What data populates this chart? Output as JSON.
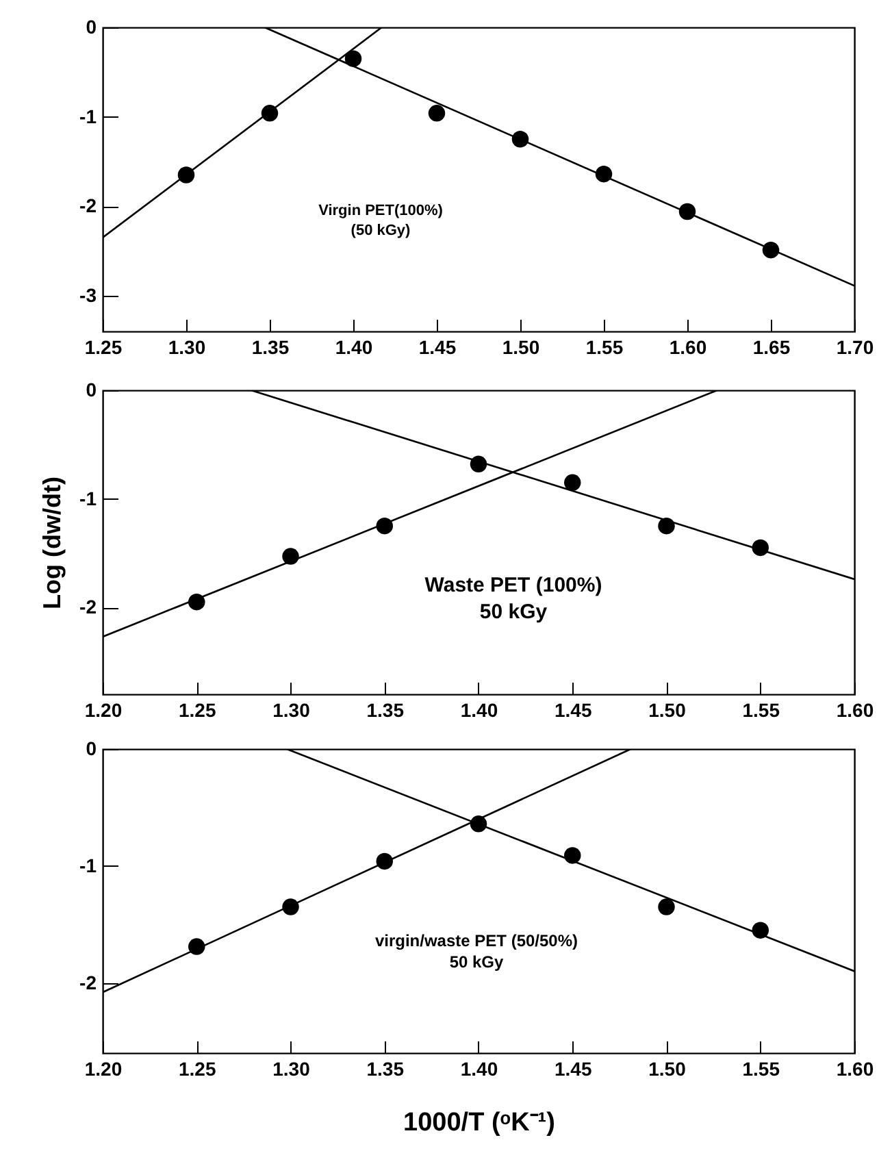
{
  "chart_data": [
    {
      "type": "scatter",
      "grid": false,
      "xlim": [
        1.25,
        1.7
      ],
      "xticks": [
        {
          "value": 1.25,
          "label": "1.25"
        },
        {
          "value": 1.3,
          "label": "1.30"
        },
        {
          "value": 1.35,
          "label": "1.35"
        },
        {
          "value": 1.4,
          "label": "1.40"
        },
        {
          "value": 1.45,
          "label": "1.45"
        },
        {
          "value": 1.5,
          "label": "1.50"
        },
        {
          "value": 1.55,
          "label": "1.55"
        },
        {
          "value": 1.6,
          "label": "1.60"
        },
        {
          "value": 1.65,
          "label": "1.65"
        },
        {
          "value": 1.7,
          "label": "1.70"
        }
      ],
      "ylim": [
        -3.4,
        0
      ],
      "yticks": [
        0,
        -1,
        -2,
        -3
      ],
      "annotations": [
        "Virgin PET(100%)",
        "(50 kGy)"
      ],
      "series": [
        {
          "marker": "circle",
          "color": "#000000",
          "x": [
            1.3,
            1.35,
            1.4,
            1.45,
            1.5,
            1.55,
            1.6,
            1.65
          ],
          "values": [
            -1.65,
            -0.96,
            -0.35,
            -0.96,
            -1.25,
            -1.64,
            -2.06,
            -2.49
          ]
        },
        {
          "type": "line",
          "color": "#000000",
          "x": [
            1.25,
            1.417
          ],
          "values": [
            -2.35,
            0
          ]
        },
        {
          "type": "line",
          "color": "#000000",
          "x": [
            1.347,
            1.7
          ],
          "values": [
            0,
            -2.89
          ]
        }
      ]
    },
    {
      "type": "scatter",
      "grid": false,
      "ylabel": "Log (dw/dt)",
      "xlim": [
        1.2,
        1.6
      ],
      "xticks": [
        {
          "value": 1.2,
          "label": "1.20"
        },
        {
          "value": 1.25,
          "label": "1.25"
        },
        {
          "value": 1.3,
          "label": "1.30"
        },
        {
          "value": 1.35,
          "label": "1.35"
        },
        {
          "value": 1.4,
          "label": "1.40"
        },
        {
          "value": 1.45,
          "label": "1.45"
        },
        {
          "value": 1.5,
          "label": "1.50"
        },
        {
          "value": 1.55,
          "label": "1.55"
        },
        {
          "value": 1.6,
          "label": "1.60"
        }
      ],
      "ylim": [
        -2.8,
        0
      ],
      "yticks": [
        0,
        -1,
        -2
      ],
      "annotations": [
        "Waste PET (100%)",
        "50 kGy"
      ],
      "series": [
        {
          "marker": "circle",
          "color": "#000000",
          "x": [
            1.25,
            1.3,
            1.35,
            1.4,
            1.45,
            1.5,
            1.55
          ],
          "values": [
            -1.95,
            -1.53,
            -1.25,
            -0.68,
            -0.85,
            -1.25,
            -1.45
          ]
        },
        {
          "type": "line",
          "color": "#000000",
          "x": [
            1.2,
            1.527
          ],
          "values": [
            -2.27,
            0
          ]
        },
        {
          "type": "line",
          "color": "#000000",
          "x": [
            1.279,
            1.6
          ],
          "values": [
            0,
            -1.74
          ]
        }
      ]
    },
    {
      "type": "scatter",
      "grid": false,
      "xlabel": "1000/T (ᵒK⁻¹)",
      "xlim": [
        1.2,
        1.6
      ],
      "xticks": [
        {
          "value": 1.2,
          "label": "1.20"
        },
        {
          "value": 1.25,
          "label": "1.25"
        },
        {
          "value": 1.3,
          "label": "1.30"
        },
        {
          "value": 1.35,
          "label": "1.35"
        },
        {
          "value": 1.4,
          "label": "1.40"
        },
        {
          "value": 1.45,
          "label": "1.45"
        },
        {
          "value": 1.5,
          "label": "1.50"
        },
        {
          "value": 1.55,
          "label": "1.55"
        },
        {
          "value": 1.6,
          "label": "1.60"
        }
      ],
      "ylim": [
        -2.6,
        0
      ],
      "yticks": [
        0,
        -1,
        -2
      ],
      "annotations": [
        "virgin/waste PET (50/50%)",
        "50 kGy"
      ],
      "series": [
        {
          "marker": "circle",
          "color": "#000000",
          "x": [
            1.25,
            1.3,
            1.35,
            1.4,
            1.45,
            1.5,
            1.55
          ],
          "values": [
            -1.69,
            -1.35,
            -0.96,
            -0.64,
            -0.91,
            -1.35,
            -1.55
          ]
        },
        {
          "type": "line",
          "color": "#000000",
          "x": [
            1.2,
            1.481
          ],
          "values": [
            -2.08,
            0
          ]
        },
        {
          "type": "line",
          "color": "#000000",
          "x": [
            1.298,
            1.6
          ],
          "values": [
            0,
            -1.9
          ]
        }
      ]
    }
  ]
}
